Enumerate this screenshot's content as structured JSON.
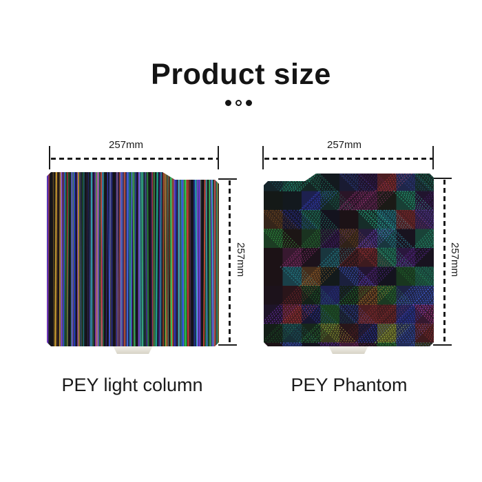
{
  "title": "Product size",
  "pagination_dots": [
    "filled",
    "open",
    "filled"
  ],
  "products": [
    {
      "name": "PEY light column",
      "width_label": "257mm",
      "height_label": "257mm",
      "base_color": "#15141a",
      "palette": [
        "#3db54a",
        "#2bd94f",
        "#1f8a3a",
        "#2b47e8",
        "#4a6cf5",
        "#2a35b0",
        "#6a3df0",
        "#8a55f5",
        "#4a2fa8",
        "#d04040",
        "#e06030",
        "#d0a030",
        "#20b090",
        "#30c0d0"
      ]
    },
    {
      "name": "PEY Phantom",
      "width_label": "257mm",
      "height_label": "257mm",
      "base_color": "#121015",
      "palette": [
        "#3dc24f",
        "#2fd9a0",
        "#4a6cf5",
        "#8a55f5",
        "#d04040",
        "#d08030",
        "#30c0d0",
        "#c0d040",
        "#d040a0",
        "#2a9a3a",
        "#3a4ae0",
        "#7a30c0"
      ]
    }
  ],
  "colors": {
    "background": "#ffffff",
    "text": "#141414",
    "dimension_line": "#1a1a1a",
    "handle_tab": "#e9e6dd"
  }
}
